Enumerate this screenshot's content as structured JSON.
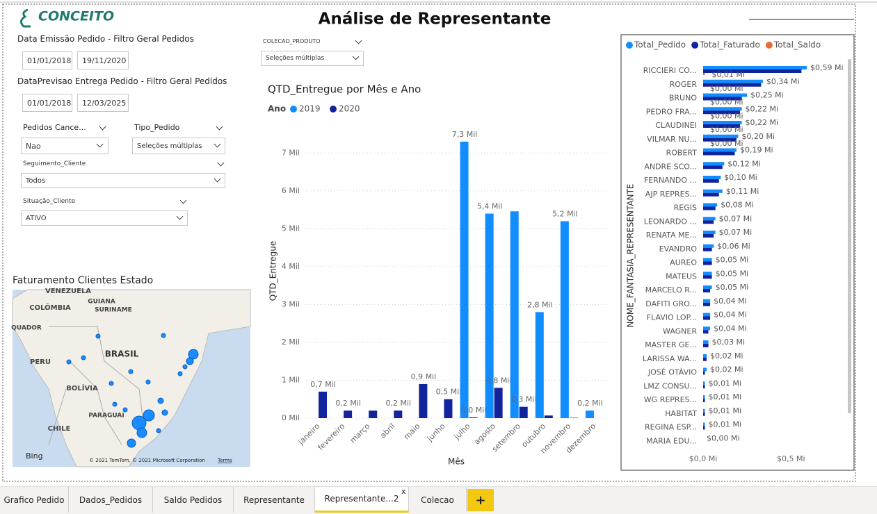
{
  "header": {
    "logo": "CONCEITO",
    "title": "Análise de Representante"
  },
  "filters": {
    "emissao": {
      "label": "Data Emissão Pedido - Filtro Geral Pedidos",
      "start": "01/01/2018",
      "end": "19/11/2020"
    },
    "previsao": {
      "label": "DataPrevisao Entrega Pedido - Filtro Geral Pedidos",
      "start": "01/01/2018",
      "end": "12/03/2025"
    },
    "dropdowns": [
      {
        "label": "Pedidos Cance...",
        "value": "Nao"
      },
      {
        "label": "Tipo_Pedido",
        "value": "Seleções múltiplas"
      },
      {
        "label": "Seguimento_Cliente",
        "value": "Todos"
      },
      {
        "label": "Situação_Cliente",
        "value": "ATIVO"
      },
      {
        "label": "COLECAO_PRODUTO",
        "value": "Seleções múltiplas"
      }
    ]
  },
  "map": {
    "title": "Faturamento Clientes Estado",
    "labels": [
      "VENEZUELA",
      "COLÔMBIA",
      "GUIANA",
      "SURINAME",
      "QUADOR",
      "PERU",
      "BRASIL",
      "BOLÍVIA",
      "PARAGUAI",
      "CHILE"
    ],
    "brand": "Bing",
    "attribution": "© 2021 TomTom, © 2021 Microsoft Corporation",
    "terms": "Terms"
  },
  "chart_data": [
    {
      "type": "bar",
      "title": "QTD_Entregue por Mês e Ano",
      "legend_title": "Ano",
      "x_label": "Mês",
      "y_label": "QTD_Entregue",
      "categories": [
        "janeiro",
        "fevereiro",
        "março",
        "abril",
        "maio",
        "junho",
        "julho",
        "agosto",
        "setembro",
        "outubro",
        "novembro",
        "dezembro"
      ],
      "series": [
        {
          "name": "2019",
          "color": "#118DFF",
          "values": [
            null,
            null,
            null,
            null,
            null,
            null,
            7.3,
            5.4,
            5.46,
            2.8,
            5.2,
            0.2
          ],
          "value_labels": [
            null,
            null,
            null,
            null,
            null,
            null,
            "7,3 Mil",
            "5,4 Mil",
            null,
            "2,8 Mil",
            "5,2 Mil",
            "0,2 Mil"
          ]
        },
        {
          "name": "2020",
          "color": "#12239E",
          "values": [
            0.7,
            0.2,
            0.2,
            0.2,
            0.9,
            0.5,
            0.02,
            0.8,
            0.3,
            0.07,
            0.01,
            null
          ],
          "value_labels": [
            "0,7 Mil",
            "0,2 Mil",
            null,
            "0,2 Mil",
            "0,9 Mil",
            "0,5 Mil",
            "0,0 Mil",
            "0,8 Mil",
            "0,3 Mil",
            null,
            null,
            null
          ]
        }
      ],
      "ylim": [
        0,
        7.5
      ],
      "yticks": [
        {
          "value": 0,
          "label": "0 Mil"
        },
        {
          "value": 1,
          "label": "1 Mil"
        },
        {
          "value": 2,
          "label": "2 Mil"
        },
        {
          "value": 3,
          "label": "3 Mil"
        },
        {
          "value": 4,
          "label": "4 Mil"
        },
        {
          "value": 5,
          "label": "5 Mil"
        },
        {
          "value": 6,
          "label": "6 Mil"
        },
        {
          "value": 7,
          "label": "7 Mil"
        }
      ],
      "grid": true
    },
    {
      "type": "bar",
      "orientation": "horizontal",
      "y_label": "NOME_FANTASIA_REPRESENTANTE",
      "categories": [
        "RICCIERI CO...",
        "ROGER",
        "BRUNO",
        "PEDRO FRA...",
        "CLAUDINEI",
        "VILMAR NU...",
        "ROBERT",
        "ANDRE SCO...",
        "FERNANDO ...",
        "AJP REPRES...",
        "REGIS",
        "LEONARDO ...",
        "RENATA ME...",
        "EVANDRO",
        "AUREO",
        "MATEUS",
        "MARCELO R...",
        "DAFITI GRO...",
        "FLAVIO LOP...",
        "WAGNER",
        "MASTER GE...",
        "LARISSA WA...",
        "JOSÉ OTÁVIO",
        "LMZ CONSU...",
        "WG REPRES...",
        "HABITAT",
        "REGINA ESP...",
        "MARIA EDU..."
      ],
      "series": [
        {
          "name": "Total_Pedido",
          "color": "#118DFF",
          "values": [
            0.59,
            0.34,
            0.25,
            0.22,
            0.22,
            0.2,
            0.19,
            0.12,
            0.1,
            0.11,
            0.08,
            0.07,
            0.07,
            0.06,
            0.05,
            0.05,
            0.05,
            0.04,
            0.04,
            0.04,
            0.03,
            0.02,
            0.02,
            0.01,
            0.01,
            0.01,
            0.01,
            0.0
          ],
          "value_labels": [
            "$0,59 Mi",
            "$0,34 Mi",
            "$0,25 Mi",
            "$0,22 Mi",
            "$0,22 Mi",
            "$0,20 Mi",
            "$0,19 Mi",
            "$0,12 Mi",
            "$0,10 Mi",
            "$0,11 Mi",
            "$0,08 Mi",
            "$0,07 Mi",
            "$0,07 Mi",
            "$0,06 Mi",
            "$0,05 Mi",
            "$0,05 Mi",
            "$0,05 Mi",
            "$0,04 Mi",
            "$0,04 Mi",
            "$0,04 Mi",
            "$0,03 Mi",
            "$0,02 Mi",
            "$0,02 Mi",
            "$0,01 Mi",
            "$0,01 Mi",
            "$0,01 Mi",
            "$0,01 Mi",
            "$0,00 Mi"
          ]
        },
        {
          "name": "Total_Faturado",
          "color": "#12239E",
          "values": [
            0.56,
            0.33,
            0.22,
            0.21,
            0.21,
            0.19,
            0.18,
            0.11,
            0.09,
            0.09,
            0.07,
            0.06,
            0.06,
            0.05,
            0.05,
            0.05,
            0.04,
            0.04,
            0.04,
            0.03,
            0.03,
            0.02,
            0.01,
            0.01,
            0.01,
            0.01,
            0.01,
            0.0
          ]
        },
        {
          "name": "Total_Saldo",
          "color": "#E66C37",
          "values": [
            0.01,
            0.0,
            0.0,
            0.0,
            0.0,
            0.0,
            0,
            0,
            0,
            0,
            0,
            0,
            0,
            0,
            0,
            0,
            0,
            0,
            0,
            0,
            0,
            0,
            0,
            0,
            0,
            0,
            0,
            0
          ],
          "value_labels": [
            "$0,01 Mi",
            "$0,00 Mi",
            "$0,00 Mi",
            "$0,00 Mi",
            "$0,00 Mi",
            "$0,00 Mi",
            null,
            null,
            null,
            null,
            null,
            null,
            null,
            null,
            null,
            null,
            null,
            null,
            null,
            null,
            null,
            null,
            null,
            null,
            null,
            null,
            null,
            null
          ]
        }
      ],
      "xlim": [
        0,
        0.8
      ],
      "xticks": [
        {
          "value": 0,
          "label": "$0,0 Mi"
        },
        {
          "value": 0.5,
          "label": "$0,5 Mi"
        }
      ],
      "legend": "top-left"
    }
  ],
  "tabs": [
    "Grafico Pedido",
    "Dados_Pedidos",
    "Saldo Pedidos",
    "Representante",
    "Representante...2",
    "Colecao"
  ],
  "active_tab": 4,
  "close_tab": "x",
  "add_tab": "+"
}
